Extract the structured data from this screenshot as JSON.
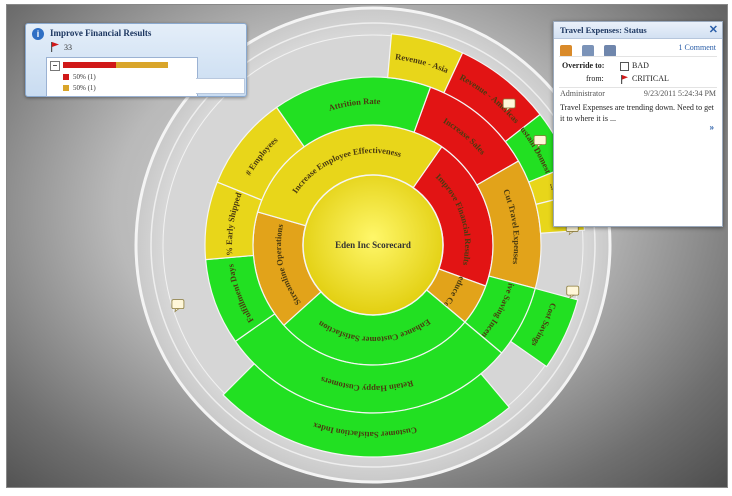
{
  "scorecard": {
    "center": "Eden Inc Scorecard",
    "colors": {
      "green": "#22e022",
      "yellow": "#e8d61a",
      "orange": "#e2a31a",
      "red": "#e21414",
      "critical_yellow": "#f0e200"
    },
    "ring1": [
      {
        "label": "Improve Financial Results",
        "status": "red"
      },
      {
        "label": "Reduce Cost",
        "status": "orange"
      },
      {
        "label": "Enhance Customer Satisfaction",
        "status": "green"
      },
      {
        "label": "Streamline Operations",
        "status": "orange"
      },
      {
        "label": "Increase Employee Effectiveness",
        "status": "yellow"
      }
    ],
    "ring2": [
      {
        "label": "Increase Sales",
        "status": "red"
      },
      {
        "label": "Cut Travel Expenses",
        "status": "orange"
      },
      {
        "label": "Drive Saving Incent...",
        "status": "green"
      },
      {
        "label": "Retain Happy Customers",
        "status": "green"
      },
      {
        "label": "Fulfillment Days",
        "status": "green"
      },
      {
        "label": "% Early Shipped",
        "status": "yellow"
      },
      {
        "label": "# Employees",
        "status": "yellow"
      },
      {
        "label": "Attrition Rate",
        "status": "green"
      }
    ],
    "ring3": [
      {
        "label": "Revenue - Asia",
        "status": "yellow"
      },
      {
        "label": "Revenue - Americas",
        "status": "red"
      },
      {
        "label": "Sustain Domest...",
        "status": "green"
      },
      {
        "label": "...",
        "status": "yellow"
      },
      {
        "label": "...",
        "status": "yellow"
      },
      {
        "label": "Cost Savings",
        "status": "green"
      },
      {
        "label": "Customer Satisfaction Index",
        "status": "green"
      }
    ]
  },
  "info_popup": {
    "title": "Improve Financial Results",
    "count": "33",
    "bar_red_fraction": 0.5,
    "legend": [
      {
        "label": "50% (1)",
        "color": "#d01818"
      },
      {
        "label": "50% (1)",
        "color": "#d9a52a"
      }
    ],
    "collapse_symbol": "–",
    "icon_name": "info-icon"
  },
  "status_panel": {
    "title": "Travel Expenses: Status",
    "close": "✕",
    "comments_link": "1 Comment",
    "override_label": "Override to:",
    "override_value": "BAD",
    "from_label": "from:",
    "from_value": "CRITICAL",
    "author": "Administrator",
    "date": "9/23/2011 5:24:34 PM",
    "comment": "Travel Expenses are trending down. Need to get it to where it is ...",
    "expand": "»"
  }
}
